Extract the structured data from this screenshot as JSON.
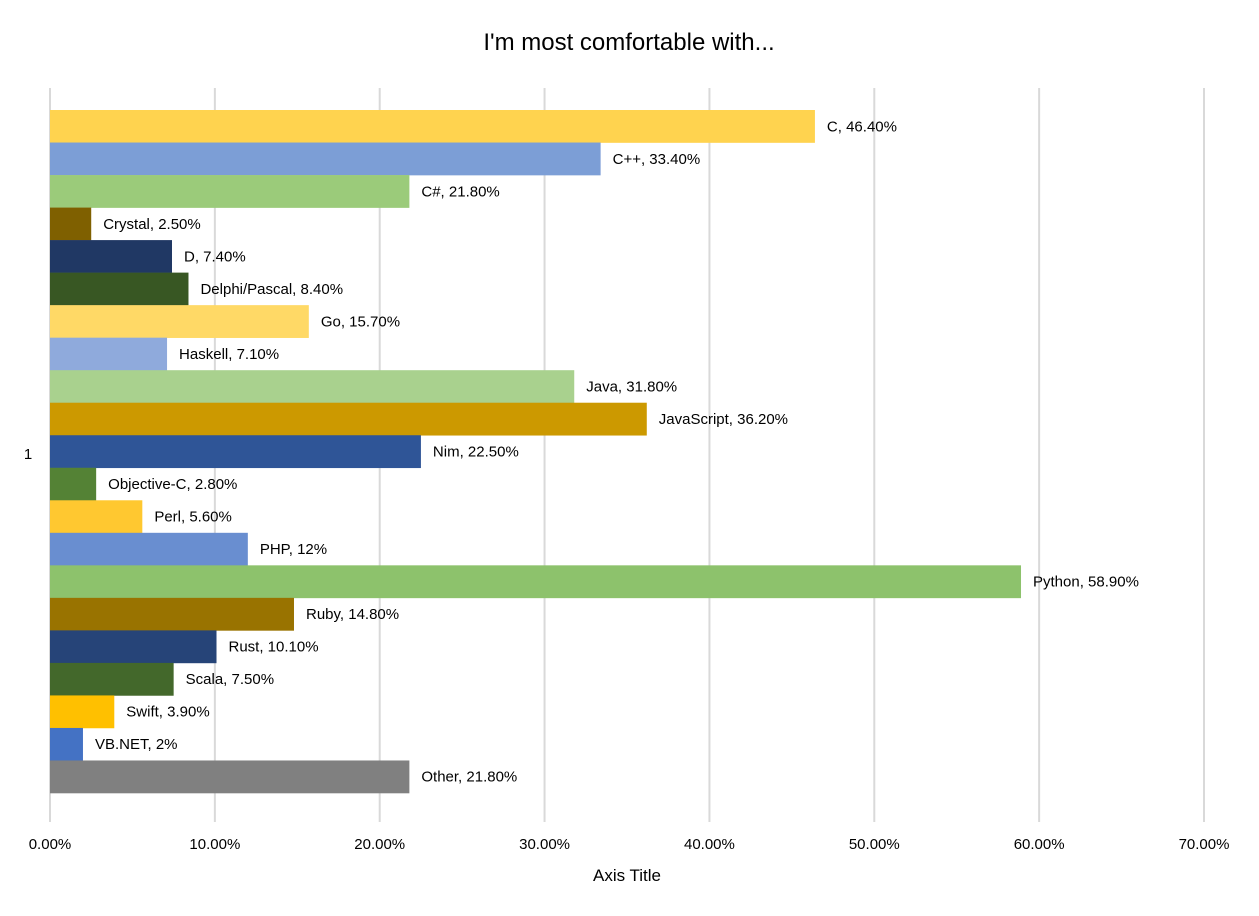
{
  "chart_data": {
    "type": "bar",
    "orientation": "horizontal",
    "title": "I'm most comfortable with...",
    "xlabel": "Axis Title",
    "ylabel": "",
    "category_axis_label": "1",
    "xlim": [
      0,
      70
    ],
    "x_ticks": [
      "0.00%",
      "10.00%",
      "20.00%",
      "30.00%",
      "40.00%",
      "50.00%",
      "60.00%",
      "70.00%"
    ],
    "grid": true,
    "legend": "none",
    "series": [
      {
        "name": "C",
        "value": 46.4,
        "label": "C, 46.40%",
        "color": "#FFD34F"
      },
      {
        "name": "C++",
        "value": 33.4,
        "label": "C++, 33.40%",
        "color": "#7C9ED6"
      },
      {
        "name": "C#",
        "value": 21.8,
        "label": "C#, 21.80%",
        "color": "#9BCB7A"
      },
      {
        "name": "Crystal",
        "value": 2.5,
        "label": "Crystal, 2.50%",
        "color": "#7F6000"
      },
      {
        "name": "D",
        "value": 7.4,
        "label": "D, 7.40%",
        "color": "#203864"
      },
      {
        "name": "Delphi/Pascal",
        "value": 8.4,
        "label": "Delphi/Pascal, 8.40%",
        "color": "#385723"
      },
      {
        "name": "Go",
        "value": 15.7,
        "label": "Go, 15.70%",
        "color": "#FFD966"
      },
      {
        "name": "Haskell",
        "value": 7.1,
        "label": "Haskell, 7.10%",
        "color": "#8FAADC"
      },
      {
        "name": "Java",
        "value": 31.8,
        "label": "Java, 31.80%",
        "color": "#A9D18E"
      },
      {
        "name": "JavaScript",
        "value": 36.2,
        "label": "JavaScript, 36.20%",
        "color": "#CC9900"
      },
      {
        "name": "Nim",
        "value": 22.5,
        "label": "Nim, 22.50%",
        "color": "#2F5597"
      },
      {
        "name": "Objective-C",
        "value": 2.8,
        "label": "Objective-C, 2.80%",
        "color": "#548235"
      },
      {
        "name": "Perl",
        "value": 5.6,
        "label": "Perl, 5.60%",
        "color": "#FFC830"
      },
      {
        "name": "PHP",
        "value": 12,
        "label": "PHP, 12%",
        "color": "#698ED0"
      },
      {
        "name": "Python",
        "value": 58.9,
        "label": "Python, 58.90%",
        "color": "#8DC26C"
      },
      {
        "name": "Ruby",
        "value": 14.8,
        "label": "Ruby, 14.80%",
        "color": "#997300"
      },
      {
        "name": "Rust",
        "value": 10.1,
        "label": "Rust, 10.10%",
        "color": "#264478"
      },
      {
        "name": "Scala",
        "value": 7.5,
        "label": "Scala, 7.50%",
        "color": "#43682B"
      },
      {
        "name": "Swift",
        "value": 3.9,
        "label": "Swift, 3.90%",
        "color": "#FFC000"
      },
      {
        "name": "VB.NET",
        "value": 2,
        "label": "VB.NET, 2%",
        "color": "#4472C4"
      },
      {
        "name": "Other",
        "value": 21.8,
        "label": "Other, 21.80%",
        "color": "#808080"
      }
    ]
  }
}
